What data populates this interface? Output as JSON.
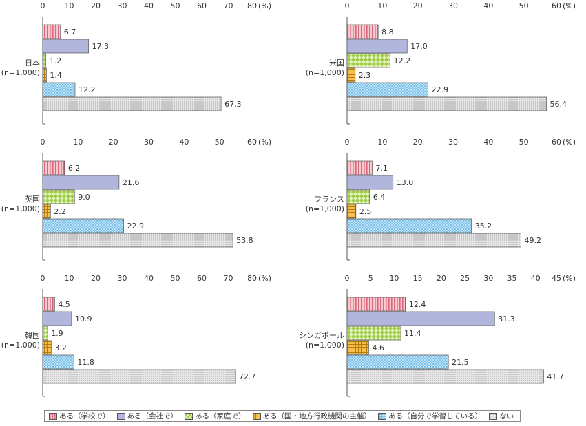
{
  "chart_data": {
    "type": "bar",
    "orientation": "horizontal",
    "percent_unit": "(%)",
    "series": [
      {
        "name": "ある（学校で）",
        "color": "#e88a99",
        "pattern": "vertical-stripes"
      },
      {
        "name": "ある（会社で）",
        "color": "#b3b6dc",
        "pattern": "solid"
      },
      {
        "name": "ある（家庭で）",
        "color": "#bde07a",
        "pattern": "checker"
      },
      {
        "name": "ある（国・地方行政機関の主催）",
        "color": "#f2a51c",
        "pattern": "grid"
      },
      {
        "name": "ある（自分で学習している）",
        "color": "#8ccbf0",
        "pattern": "dots"
      },
      {
        "name": "ない",
        "color": "#d4d4d4",
        "pattern": "dots"
      }
    ],
    "panels": [
      {
        "country": "日本",
        "n": "(n=1,000)",
        "ticks": [
          0,
          10,
          20,
          30,
          40,
          50,
          60,
          70,
          80
        ],
        "values": [
          6.7,
          17.3,
          1.2,
          1.4,
          12.2,
          67.3
        ]
      },
      {
        "country": "米国",
        "n": "(n=1,000)",
        "ticks": [
          0,
          10,
          20,
          30,
          40,
          50,
          60
        ],
        "values": [
          8.8,
          17.0,
          12.2,
          2.3,
          22.9,
          56.4
        ]
      },
      {
        "country": "英国",
        "n": "(n=1,000)",
        "ticks": [
          0,
          10,
          20,
          30,
          40,
          50,
          60
        ],
        "values": [
          6.2,
          21.6,
          9.0,
          2.2,
          22.9,
          53.8
        ]
      },
      {
        "country": "フランス",
        "n": "(n=1,000)",
        "ticks": [
          0,
          10,
          20,
          30,
          40,
          50,
          60
        ],
        "values": [
          7.1,
          13.0,
          6.4,
          2.5,
          35.2,
          49.2
        ]
      },
      {
        "country": "韓国",
        "n": "(n=1,000)",
        "ticks": [
          0,
          10,
          20,
          30,
          40,
          50,
          60,
          70,
          80
        ],
        "values": [
          4.5,
          10.9,
          1.9,
          3.2,
          11.8,
          72.7
        ]
      },
      {
        "country": "シンガポール",
        "n": "(n=1,000)",
        "ticks": [
          0,
          5,
          10,
          15,
          20,
          25,
          30,
          35,
          40,
          45
        ],
        "values": [
          12.4,
          31.3,
          11.4,
          4.6,
          21.5,
          41.7
        ]
      }
    ]
  }
}
